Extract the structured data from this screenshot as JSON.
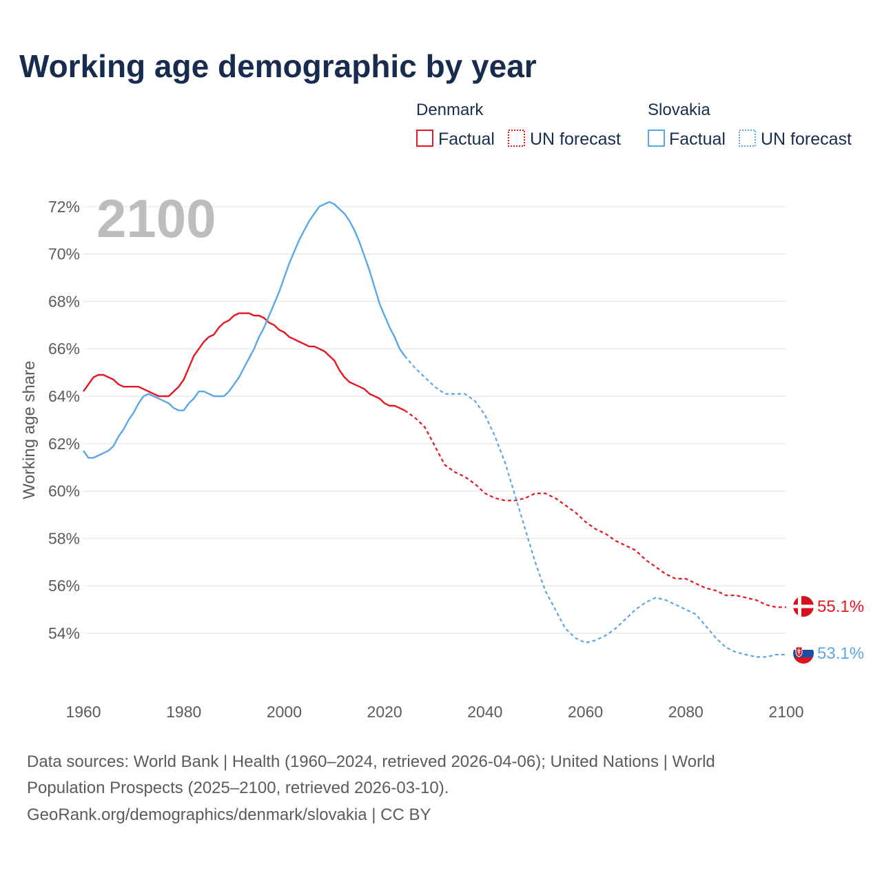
{
  "title": "Working age demographic by year",
  "year_label": "2100",
  "legend": {
    "denmark_header": "Denmark",
    "slovakia_header": "Slovakia",
    "factual": "Factual",
    "forecast": "UN forecast"
  },
  "colors": {
    "denmark": "#e8141f",
    "slovakia": "#5aa6e6"
  },
  "end_labels": {
    "denmark": "55.1%",
    "slovakia": "53.1%"
  },
  "source": {
    "line1": "Data sources: World Bank | Health (1960–2024, retrieved 2026-04-06); United Nations | World",
    "line2": "Population Prospects (2025–2100, retrieved 2026-03-10).",
    "line3": "GeoRank.org/demographics/denmark/slovakia | CC BY"
  },
  "chart_data": {
    "type": "line",
    "title": "Working age demographic by year",
    "xlabel": "",
    "ylabel": "Working age share",
    "xlim": [
      1960,
      2100
    ],
    "ylim": [
      52,
      72.5
    ],
    "x_ticks": [
      1960,
      1980,
      2000,
      2020,
      2040,
      2060,
      2080,
      2100
    ],
    "y_ticks": [
      54,
      56,
      58,
      60,
      62,
      64,
      66,
      68,
      70,
      72
    ],
    "y_tick_labels": [
      "54%",
      "56%",
      "58%",
      "60%",
      "62%",
      "64%",
      "66%",
      "68%",
      "70%",
      "72%"
    ],
    "x_tick_labels": [
      "1960",
      "1980",
      "2000",
      "2020",
      "2040",
      "2060",
      "2080",
      "2100"
    ],
    "series": [
      {
        "name": "Denmark",
        "kind": "factual",
        "style": "solid",
        "x": [
          1960,
          1961,
          1962,
          1963,
          1964,
          1965,
          1966,
          1967,
          1968,
          1969,
          1970,
          1971,
          1972,
          1973,
          1974,
          1975,
          1976,
          1977,
          1978,
          1979,
          1980,
          1981,
          1982,
          1983,
          1984,
          1985,
          1986,
          1987,
          1988,
          1989,
          1990,
          1991,
          1992,
          1993,
          1994,
          1995,
          1996,
          1997,
          1998,
          1999,
          2000,
          2001,
          2002,
          2003,
          2004,
          2005,
          2006,
          2007,
          2008,
          2009,
          2010,
          2011,
          2012,
          2013,
          2014,
          2015,
          2016,
          2017,
          2018,
          2019,
          2020,
          2021,
          2022,
          2023,
          2024
        ],
        "y": [
          64.2,
          64.5,
          64.8,
          64.9,
          64.9,
          64.8,
          64.7,
          64.5,
          64.4,
          64.4,
          64.4,
          64.4,
          64.3,
          64.2,
          64.1,
          64.0,
          64.0,
          64.0,
          64.2,
          64.4,
          64.7,
          65.2,
          65.7,
          66.0,
          66.3,
          66.5,
          66.6,
          66.9,
          67.1,
          67.2,
          67.4,
          67.5,
          67.5,
          67.5,
          67.4,
          67.4,
          67.3,
          67.1,
          67.0,
          66.8,
          66.7,
          66.5,
          66.4,
          66.3,
          66.2,
          66.1,
          66.1,
          66.0,
          65.9,
          65.7,
          65.5,
          65.1,
          64.8,
          64.6,
          64.5,
          64.4,
          64.3,
          64.1,
          64.0,
          63.9,
          63.7,
          63.6,
          63.6,
          63.5,
          63.4
        ]
      },
      {
        "name": "Denmark",
        "kind": "forecast",
        "style": "dotted",
        "x": [
          2024,
          2026,
          2028,
          2030,
          2032,
          2034,
          2036,
          2038,
          2040,
          2042,
          2044,
          2046,
          2048,
          2050,
          2052,
          2054,
          2056,
          2058,
          2060,
          2062,
          2064,
          2066,
          2068,
          2070,
          2072,
          2074,
          2076,
          2078,
          2080,
          2082,
          2084,
          2086,
          2088,
          2090,
          2092,
          2094,
          2096,
          2098,
          2100
        ],
        "y": [
          63.4,
          63.1,
          62.7,
          61.9,
          61.1,
          60.8,
          60.6,
          60.3,
          59.9,
          59.7,
          59.6,
          59.6,
          59.7,
          59.9,
          59.9,
          59.7,
          59.4,
          59.1,
          58.7,
          58.4,
          58.2,
          57.9,
          57.7,
          57.5,
          57.1,
          56.8,
          56.5,
          56.3,
          56.3,
          56.1,
          55.9,
          55.8,
          55.6,
          55.6,
          55.5,
          55.4,
          55.2,
          55.1,
          55.1
        ]
      },
      {
        "name": "Slovakia",
        "kind": "factual",
        "style": "solid",
        "x": [
          1960,
          1961,
          1962,
          1963,
          1964,
          1965,
          1966,
          1967,
          1968,
          1969,
          1970,
          1971,
          1972,
          1973,
          1974,
          1975,
          1976,
          1977,
          1978,
          1979,
          1980,
          1981,
          1982,
          1983,
          1984,
          1985,
          1986,
          1987,
          1988,
          1989,
          1990,
          1991,
          1992,
          1993,
          1994,
          1995,
          1996,
          1997,
          1998,
          1999,
          2000,
          2001,
          2002,
          2003,
          2004,
          2005,
          2006,
          2007,
          2008,
          2009,
          2010,
          2011,
          2012,
          2013,
          2014,
          2015,
          2016,
          2017,
          2018,
          2019,
          2020,
          2021,
          2022,
          2023,
          2024
        ],
        "y": [
          61.7,
          61.4,
          61.4,
          61.5,
          61.6,
          61.7,
          61.9,
          62.3,
          62.6,
          63.0,
          63.3,
          63.7,
          64.0,
          64.1,
          64.0,
          63.9,
          63.8,
          63.7,
          63.5,
          63.4,
          63.4,
          63.7,
          63.9,
          64.2,
          64.2,
          64.1,
          64.0,
          64.0,
          64.0,
          64.2,
          64.5,
          64.8,
          65.2,
          65.6,
          66.0,
          66.5,
          66.9,
          67.4,
          67.9,
          68.4,
          69.0,
          69.6,
          70.1,
          70.6,
          71.0,
          71.4,
          71.7,
          72.0,
          72.1,
          72.2,
          72.1,
          71.9,
          71.7,
          71.4,
          71.0,
          70.5,
          69.9,
          69.3,
          68.6,
          67.9,
          67.4,
          66.9,
          66.5,
          66.0,
          65.7
        ]
      },
      {
        "name": "Slovakia",
        "kind": "forecast",
        "style": "dotted",
        "x": [
          2024,
          2026,
          2028,
          2030,
          2032,
          2034,
          2036,
          2038,
          2040,
          2042,
          2044,
          2046,
          2048,
          2050,
          2052,
          2054,
          2056,
          2058,
          2060,
          2062,
          2064,
          2066,
          2068,
          2070,
          2072,
          2074,
          2076,
          2078,
          2080,
          2082,
          2084,
          2086,
          2088,
          2090,
          2092,
          2094,
          2096,
          2098,
          2100
        ],
        "y": [
          65.7,
          65.2,
          64.8,
          64.4,
          64.1,
          64.1,
          64.1,
          63.8,
          63.2,
          62.3,
          61.2,
          59.8,
          58.4,
          57.0,
          55.8,
          55.0,
          54.2,
          53.8,
          53.6,
          53.7,
          53.9,
          54.2,
          54.6,
          55.0,
          55.3,
          55.5,
          55.4,
          55.2,
          55.0,
          54.8,
          54.3,
          53.8,
          53.4,
          53.2,
          53.1,
          53.0,
          53.0,
          53.1,
          53.1
        ]
      }
    ]
  }
}
